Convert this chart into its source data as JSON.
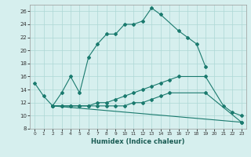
{
  "title": "",
  "xlabel": "Humidex (Indice chaleur)",
  "background_color": "#d6efee",
  "grid_color": "#add8d5",
  "line_color": "#1a7a6e",
  "xlim": [
    -0.5,
    23.5
  ],
  "ylim": [
    8,
    27
  ],
  "xticks": [
    0,
    1,
    2,
    3,
    4,
    5,
    6,
    7,
    8,
    9,
    10,
    11,
    12,
    13,
    14,
    15,
    16,
    17,
    18,
    19,
    20,
    21,
    22,
    23
  ],
  "yticks": [
    8,
    10,
    12,
    14,
    16,
    18,
    20,
    22,
    24,
    26
  ],
  "line1_x": [
    0,
    1,
    2,
    3,
    4,
    5,
    6,
    7,
    8,
    9,
    10,
    11,
    12,
    13,
    14,
    16,
    17,
    18,
    19
  ],
  "line1_y": [
    15,
    13,
    11.5,
    13.5,
    16,
    13.5,
    19,
    21,
    22.5,
    22.5,
    24,
    24,
    24.5,
    26.5,
    25.5,
    23,
    22,
    21,
    17.5
  ],
  "line2_x": [
    2,
    3,
    4,
    5,
    6,
    7,
    8,
    9,
    10,
    11,
    12,
    13,
    14,
    15,
    16,
    19,
    21,
    22,
    23
  ],
  "line2_y": [
    11.5,
    11.5,
    11.5,
    11.5,
    11.5,
    12,
    12,
    12.5,
    13,
    13.5,
    14,
    14.5,
    15,
    15.5,
    16,
    16,
    11.5,
    10.5,
    10
  ],
  "line3_x": [
    2,
    3,
    4,
    5,
    6,
    7,
    8,
    9,
    10,
    11,
    12,
    13,
    14,
    15,
    19,
    23
  ],
  "line3_y": [
    11.5,
    11.5,
    11.5,
    11.5,
    11.5,
    11.5,
    11.5,
    11.5,
    11.5,
    12,
    12,
    12.5,
    13,
    13.5,
    13.5,
    9
  ],
  "line4_x": [
    2,
    23
  ],
  "line4_y": [
    11.5,
    9
  ]
}
